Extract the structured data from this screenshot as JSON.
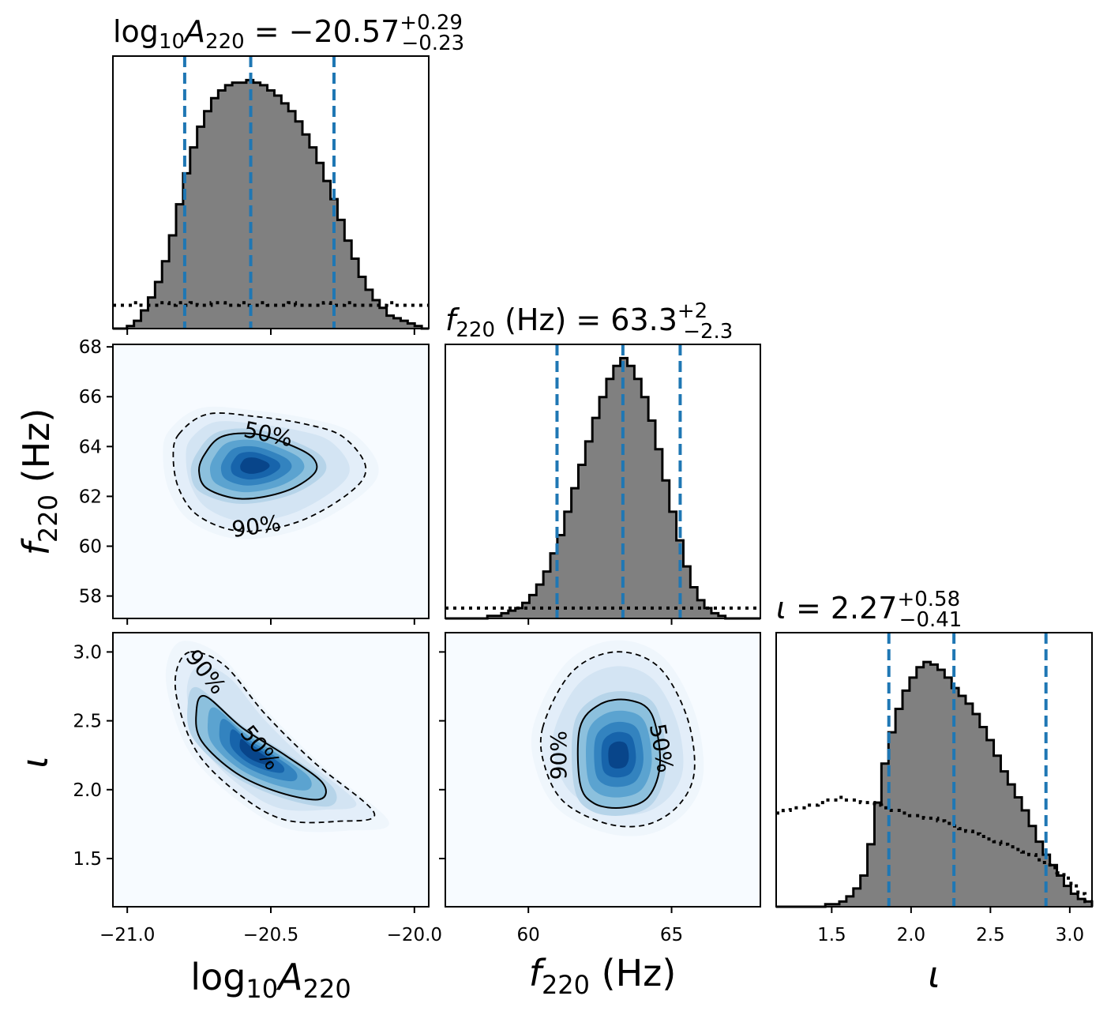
{
  "chart_data": {
    "type": "corner",
    "parameters": [
      {
        "key": "log10A220",
        "label": "log10A220",
        "axis_range": [
          -21.05,
          -19.95
        ],
        "ticks": [
          -21.0,
          -20.5,
          -20.0
        ],
        "tick_labels": [
          "−21.0",
          "−20.5",
          "−20.0"
        ],
        "summary": {
          "median": -20.57,
          "plus": "0.29",
          "minus": "0.23"
        },
        "title_parts": {
          "pre": "log",
          "sub1": "10",
          "mid": "A",
          "sub2": "220",
          "eq": " = −20.57",
          "sup": "+0.29",
          "inf": "−0.23"
        },
        "quantile_lines": [
          -20.8,
          -20.57,
          -20.28
        ],
        "posterior_hist": [
          0.0,
          0.0,
          0.01,
          0.03,
          0.07,
          0.12,
          0.18,
          0.26,
          0.36,
          0.48,
          0.6,
          0.7,
          0.78,
          0.84,
          0.89,
          0.92,
          0.94,
          0.95,
          0.95,
          0.96,
          0.95,
          0.94,
          0.92,
          0.9,
          0.87,
          0.84,
          0.8,
          0.75,
          0.7,
          0.64,
          0.57,
          0.5,
          0.42,
          0.34,
          0.27,
          0.2,
          0.15,
          0.11,
          0.08,
          0.05,
          0.04,
          0.03,
          0.02,
          0.01,
          0.0
        ],
        "prior_hist": [
          0.09,
          0.09,
          0.09,
          0.1,
          0.09,
          0.09,
          0.09,
          0.1,
          0.09,
          0.1,
          0.09,
          0.1,
          0.09,
          0.09,
          0.1,
          0.1,
          0.09,
          0.09,
          0.1,
          0.09,
          0.09,
          0.1,
          0.09,
          0.09,
          0.09,
          0.1,
          0.09,
          0.09,
          0.09,
          0.09,
          0.1,
          0.09,
          0.09,
          0.1,
          0.09,
          0.09,
          0.09,
          0.09,
          0.09,
          0.1,
          0.09,
          0.09,
          0.09,
          0.09,
          0.09
        ]
      },
      {
        "key": "f220",
        "label": "f220 (Hz)",
        "axis_range": [
          57.1,
          68.1
        ],
        "ticks": [
          58,
          60,
          62,
          64,
          66,
          68
        ],
        "tick_labels": [
          "58",
          "60",
          "62",
          "64",
          "66",
          "68"
        ],
        "diag_ticks": [
          60,
          65
        ],
        "diag_tick_labels": [
          "60",
          "65"
        ],
        "summary": {
          "median": 63.3,
          "plus": "2",
          "minus": "2.3"
        },
        "title_parts": {
          "pre": "",
          "sub1": "",
          "mid": "f",
          "sub2": "220",
          "eq": " (Hz) = 63.3",
          "sup": "+2",
          "inf": "−2.3"
        },
        "quantile_lines": [
          61.0,
          63.3,
          65.3
        ],
        "posterior_hist": [
          0.0,
          0.0,
          0.0,
          0.0,
          0.0,
          0.0,
          0.01,
          0.01,
          0.02,
          0.03,
          0.04,
          0.06,
          0.09,
          0.13,
          0.18,
          0.25,
          0.32,
          0.41,
          0.5,
          0.59,
          0.68,
          0.77,
          0.85,
          0.92,
          0.97,
          1.0,
          0.97,
          0.92,
          0.85,
          0.76,
          0.65,
          0.53,
          0.41,
          0.3,
          0.2,
          0.12,
          0.07,
          0.04,
          0.02,
          0.01,
          0.0,
          0.0,
          0.0,
          0.0,
          0.0
        ],
        "prior_hist": [
          0.04,
          0.04,
          0.04,
          0.04,
          0.04,
          0.04,
          0.04,
          0.04,
          0.04,
          0.04,
          0.04,
          0.04,
          0.04,
          0.04,
          0.04,
          0.04,
          0.04,
          0.04,
          0.04,
          0.04,
          0.04,
          0.04,
          0.04,
          0.04,
          0.04,
          0.04,
          0.04,
          0.04,
          0.04,
          0.04,
          0.04,
          0.04,
          0.04,
          0.04,
          0.04,
          0.04,
          0.04,
          0.04,
          0.04,
          0.04,
          0.04,
          0.04,
          0.04,
          0.04,
          0.04
        ]
      },
      {
        "key": "iota",
        "label": "ι",
        "axis_range": [
          1.15,
          3.14
        ],
        "ticks": [
          1.5,
          2.0,
          2.5,
          3.0
        ],
        "tick_labels": [
          "1.5",
          "2.0",
          "2.5",
          "3.0"
        ],
        "summary": {
          "median": 2.27,
          "plus": "0.58",
          "minus": "0.41"
        },
        "title_parts": {
          "pre": "",
          "sub1": "",
          "mid": "ι",
          "sub2": "",
          "eq": " = 2.27",
          "sup": "+0.58",
          "inf": "−0.41"
        },
        "quantile_lines": [
          1.86,
          2.27,
          2.85
        ],
        "posterior_hist": [
          0.0,
          0.0,
          0.0,
          0.0,
          0.0,
          0.0,
          0.0,
          0.01,
          0.01,
          0.02,
          0.04,
          0.07,
          0.12,
          0.24,
          0.4,
          0.55,
          0.67,
          0.76,
          0.83,
          0.88,
          0.92,
          0.94,
          0.93,
          0.91,
          0.88,
          0.84,
          0.81,
          0.78,
          0.74,
          0.69,
          0.64,
          0.58,
          0.52,
          0.47,
          0.42,
          0.37,
          0.31,
          0.25,
          0.2,
          0.16,
          0.12,
          0.08,
          0.05,
          0.03,
          0.02
        ],
        "prior_hist": [
          0.36,
          0.37,
          0.38,
          0.38,
          0.39,
          0.39,
          0.4,
          0.41,
          0.41,
          0.42,
          0.41,
          0.41,
          0.4,
          0.4,
          0.39,
          0.38,
          0.37,
          0.37,
          0.36,
          0.35,
          0.35,
          0.34,
          0.34,
          0.33,
          0.32,
          0.31,
          0.3,
          0.29,
          0.28,
          0.27,
          0.26,
          0.25,
          0.24,
          0.23,
          0.22,
          0.21,
          0.2,
          0.18,
          0.17,
          0.15,
          0.13,
          0.11,
          0.08,
          0.05,
          0.02
        ]
      }
    ],
    "pairs": [
      {
        "x": "log10A220",
        "y": "f220",
        "density_center": [
          -20.6,
          63.3
        ],
        "contour_levels": [
          "50%",
          "90%"
        ],
        "contour_50": [
          [
            -20.73,
            63.7
          ],
          [
            -20.67,
            64.4
          ],
          [
            -20.55,
            64.5
          ],
          [
            -20.42,
            64.0
          ],
          [
            -20.35,
            63.5
          ],
          [
            -20.35,
            62.9
          ],
          [
            -20.45,
            62.2
          ],
          [
            -20.6,
            61.9
          ],
          [
            -20.72,
            62.3
          ],
          [
            -20.75,
            63.0
          ]
        ],
        "contour_90": [
          [
            -20.82,
            64.5
          ],
          [
            -20.72,
            65.3
          ],
          [
            -20.55,
            65.2
          ],
          [
            -20.38,
            64.9
          ],
          [
            -20.25,
            64.4
          ],
          [
            -20.17,
            63.2
          ],
          [
            -20.22,
            62.2
          ],
          [
            -20.4,
            61.0
          ],
          [
            -20.6,
            60.6
          ],
          [
            -20.75,
            61.2
          ],
          [
            -20.82,
            62.3
          ],
          [
            -20.84,
            63.6
          ]
        ]
      },
      {
        "x": "log10A220",
        "y": "iota",
        "density_center": [
          -20.5,
          2.25
        ],
        "contour_levels": [
          "50%",
          "90%"
        ],
        "contour_50": [
          [
            -20.73,
            2.68
          ],
          [
            -20.6,
            2.45
          ],
          [
            -20.45,
            2.25
          ],
          [
            -20.32,
            2.05
          ],
          [
            -20.33,
            1.93
          ],
          [
            -20.47,
            1.98
          ],
          [
            -20.62,
            2.12
          ],
          [
            -20.74,
            2.35
          ],
          [
            -20.76,
            2.55
          ]
        ],
        "contour_90": [
          [
            -20.78,
            3.0
          ],
          [
            -20.66,
            2.9
          ],
          [
            -20.52,
            2.55
          ],
          [
            -20.35,
            2.2
          ],
          [
            -20.14,
            1.83
          ],
          [
            -20.27,
            1.77
          ],
          [
            -20.45,
            1.78
          ],
          [
            -20.6,
            1.95
          ],
          [
            -20.75,
            2.25
          ],
          [
            -20.82,
            2.6
          ],
          [
            -20.83,
            2.85
          ]
        ]
      },
      {
        "x": "f220",
        "y": "iota",
        "density_center": [
          63.4,
          2.2
        ],
        "contour_levels": [
          "50%",
          "90%"
        ],
        "contour_50": [
          [
            61.8,
            2.45
          ],
          [
            62.5,
            2.62
          ],
          [
            63.5,
            2.65
          ],
          [
            64.3,
            2.55
          ],
          [
            64.6,
            2.2
          ],
          [
            64.2,
            1.95
          ],
          [
            63.3,
            1.87
          ],
          [
            62.3,
            1.9
          ],
          [
            61.8,
            2.05
          ]
        ],
        "contour_90": [
          [
            60.5,
            2.45
          ],
          [
            61.5,
            2.85
          ],
          [
            63.0,
            3.0
          ],
          [
            64.5,
            2.9
          ],
          [
            65.5,
            2.55
          ],
          [
            65.8,
            2.15
          ],
          [
            65.3,
            1.9
          ],
          [
            64.2,
            1.75
          ],
          [
            62.8,
            1.75
          ],
          [
            61.3,
            1.9
          ],
          [
            60.6,
            2.15
          ]
        ]
      }
    ],
    "colors": {
      "posterior_fill": "#808080",
      "quantile_line": "#1f77b4",
      "density_map": "Blues"
    }
  }
}
